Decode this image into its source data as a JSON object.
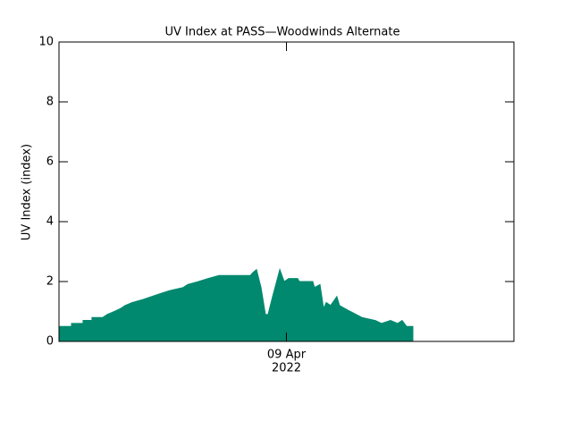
{
  "chart_data": {
    "type": "area",
    "title": "UV Index at PASS—Woodwinds Alternate",
    "ylabel": "UV Index (index)",
    "color": "#00896e",
    "x": [
      0,
      0.66,
      0.66,
      1.27,
      1.27,
      1.74,
      1.74,
      2.31,
      2.55,
      2.92,
      3.25,
      3.49,
      3.87,
      4.43,
      4.9,
      5.37,
      5.85,
      6.55,
      6.79,
      7.36,
      7.87,
      8.44,
      10.09,
      10.23,
      10.42,
      10.66,
      10.89,
      11.03,
      11.27,
      11.65,
      11.88,
      12.12,
      12.59,
      12.68,
      13.39,
      13.48,
      13.77,
      13.96,
      14.1,
      14.33,
      14.66,
      14.8,
      15.37,
      15.98,
      16.69,
      17.02,
      17.49,
      17.87,
      18.1,
      18.34,
      18.67
    ],
    "values": [
      0.5,
      0.5,
      0.6,
      0.6,
      0.7,
      0.7,
      0.8,
      0.8,
      0.9,
      1.0,
      1.1,
      1.2,
      1.3,
      1.4,
      1.5,
      1.6,
      1.7,
      1.8,
      1.9,
      2.0,
      2.1,
      2.2,
      2.2,
      2.3,
      2.4,
      1.8,
      0.9,
      0.9,
      1.5,
      2.4,
      2.0,
      2.1,
      2.1,
      2.0,
      2.0,
      1.8,
      1.9,
      1.1,
      1.3,
      1.2,
      1.5,
      1.2,
      1.0,
      0.8,
      0.7,
      0.6,
      0.7,
      0.6,
      0.7,
      0.5,
      0.5
    ],
    "xlim": [
      0,
      24
    ],
    "xticks": [
      {
        "value": 12,
        "label": "09 Apr",
        "sublabel": "2022"
      }
    ],
    "ylim": [
      0,
      10
    ],
    "yticks": [
      0,
      2,
      4,
      6,
      8,
      10
    ]
  }
}
